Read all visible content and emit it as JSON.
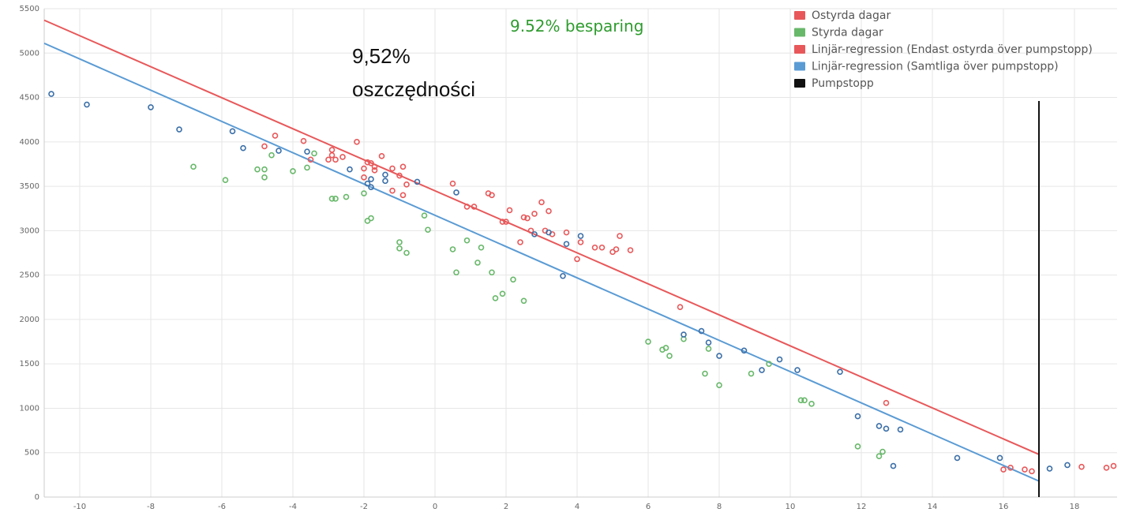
{
  "chart_data": {
    "type": "scatter",
    "xlim": [
      -11,
      19.2
    ],
    "ylim": [
      0,
      5500
    ],
    "x_ticks": [
      -10,
      -8,
      -6,
      -4,
      -2,
      0,
      2,
      4,
      6,
      8,
      10,
      12,
      14,
      16,
      18
    ],
    "y_ticks": [
      0,
      500,
      1000,
      1500,
      2000,
      2500,
      3000,
      3500,
      4000,
      4500,
      5000,
      5500
    ],
    "grid": true,
    "legend_position": "top-right",
    "legend": [
      {
        "label": "Ostyrda dagar",
        "color": "#e8585a"
      },
      {
        "label": "Styrda dagar",
        "color": "#68b86a"
      },
      {
        "label": "Linjär-regression (Endast ostyrda över pumpstopp)",
        "color": "#e8585a"
      },
      {
        "label": "Linjär-regression (Samtliga över pumpstopp)",
        "color": "#5a9bd4"
      },
      {
        "label": "Pumpstopp",
        "color": "#111111"
      }
    ],
    "annotations": {
      "savings_sv": "9.52% besparing",
      "savings_pl_line1": "9,52%",
      "savings_pl_line2": "oszczędności"
    },
    "series": [
      {
        "color": "#e8585a",
        "points": [
          [
            -4.8,
            3950
          ],
          [
            -4.5,
            4070
          ],
          [
            -3.7,
            4010
          ],
          [
            -3.5,
            3800
          ],
          [
            -3.0,
            3800
          ],
          [
            -2.9,
            3850
          ],
          [
            -2.9,
            3910
          ],
          [
            -2.8,
            3800
          ],
          [
            -2.6,
            3830
          ],
          [
            -2.2,
            4000
          ],
          [
            -2.0,
            3600
          ],
          [
            -2.0,
            3700
          ],
          [
            -1.9,
            3770
          ],
          [
            -1.8,
            3760
          ],
          [
            -1.7,
            3720
          ],
          [
            -1.7,
            3680
          ],
          [
            -1.5,
            3840
          ],
          [
            -1.2,
            3700
          ],
          [
            -1.2,
            3450
          ],
          [
            -1.0,
            3620
          ],
          [
            -0.9,
            3720
          ],
          [
            -0.9,
            3400
          ],
          [
            -0.8,
            3520
          ],
          [
            0.5,
            3530
          ],
          [
            0.9,
            3270
          ],
          [
            1.1,
            3270
          ],
          [
            1.5,
            3420
          ],
          [
            1.6,
            3400
          ],
          [
            1.9,
            3100
          ],
          [
            2.0,
            3100
          ],
          [
            2.1,
            3230
          ],
          [
            2.4,
            2870
          ],
          [
            2.5,
            3150
          ],
          [
            2.6,
            3140
          ],
          [
            2.7,
            3000
          ],
          [
            2.8,
            3190
          ],
          [
            3.0,
            3320
          ],
          [
            3.1,
            3000
          ],
          [
            3.2,
            3220
          ],
          [
            3.3,
            2960
          ],
          [
            3.7,
            2980
          ],
          [
            4.0,
            2680
          ],
          [
            4.1,
            2870
          ],
          [
            4.5,
            2810
          ],
          [
            4.7,
            2810
          ],
          [
            5.0,
            2760
          ],
          [
            5.1,
            2790
          ],
          [
            5.2,
            2940
          ],
          [
            5.5,
            2780
          ],
          [
            6.9,
            2140
          ],
          [
            12.7,
            1060
          ],
          [
            16.0,
            310
          ],
          [
            16.2,
            330
          ],
          [
            16.6,
            310
          ],
          [
            16.8,
            290
          ],
          [
            18.2,
            340
          ],
          [
            18.9,
            330
          ],
          [
            19.1,
            350
          ]
        ]
      },
      {
        "color": "#68b86a",
        "points": [
          [
            -6.8,
            3720
          ],
          [
            -5.9,
            3570
          ],
          [
            -5.0,
            3690
          ],
          [
            -4.8,
            3600
          ],
          [
            -4.8,
            3690
          ],
          [
            -4.6,
            3850
          ],
          [
            -4.0,
            3670
          ],
          [
            -3.6,
            3710
          ],
          [
            -3.4,
            3870
          ],
          [
            -2.9,
            3360
          ],
          [
            -2.8,
            3360
          ],
          [
            -2.5,
            3380
          ],
          [
            -2.0,
            3420
          ],
          [
            -1.9,
            3110
          ],
          [
            -1.8,
            3140
          ],
          [
            -1.0,
            2870
          ],
          [
            -1.0,
            2800
          ],
          [
            -0.8,
            2750
          ],
          [
            -0.3,
            3170
          ],
          [
            -0.2,
            3010
          ],
          [
            0.5,
            2790
          ],
          [
            0.6,
            2530
          ],
          [
            0.9,
            2890
          ],
          [
            1.2,
            2640
          ],
          [
            1.3,
            2810
          ],
          [
            1.6,
            2530
          ],
          [
            1.7,
            2240
          ],
          [
            1.9,
            2290
          ],
          [
            2.2,
            2450
          ],
          [
            2.5,
            2210
          ],
          [
            6.0,
            1750
          ],
          [
            6.4,
            1660
          ],
          [
            6.5,
            1680
          ],
          [
            6.6,
            1590
          ],
          [
            7.0,
            1780
          ],
          [
            7.6,
            1390
          ],
          [
            7.7,
            1670
          ],
          [
            8.0,
            1260
          ],
          [
            8.9,
            1390
          ],
          [
            9.4,
            1500
          ],
          [
            10.3,
            1090
          ],
          [
            10.4,
            1090
          ],
          [
            10.6,
            1050
          ],
          [
            11.9,
            570
          ],
          [
            12.5,
            460
          ],
          [
            12.6,
            510
          ]
        ]
      },
      {
        "color": "#3b6fa8",
        "points": [
          [
            -10.8,
            4540
          ],
          [
            -9.8,
            4420
          ],
          [
            -8.0,
            4390
          ],
          [
            -7.2,
            4140
          ],
          [
            -5.7,
            4120
          ],
          [
            -5.4,
            3930
          ],
          [
            -4.4,
            3900
          ],
          [
            -3.6,
            3890
          ],
          [
            -2.4,
            3690
          ],
          [
            -1.9,
            3530
          ],
          [
            -1.8,
            3490
          ],
          [
            -1.8,
            3580
          ],
          [
            -1.4,
            3560
          ],
          [
            -1.4,
            3630
          ],
          [
            -0.5,
            3550
          ],
          [
            0.6,
            3430
          ],
          [
            2.8,
            2960
          ],
          [
            3.2,
            2980
          ],
          [
            3.6,
            2490
          ],
          [
            3.7,
            2850
          ],
          [
            4.1,
            2940
          ],
          [
            7.0,
            1830
          ],
          [
            7.5,
            1870
          ],
          [
            7.7,
            1740
          ],
          [
            8.0,
            1590
          ],
          [
            8.7,
            1650
          ],
          [
            9.2,
            1430
          ],
          [
            9.7,
            1550
          ],
          [
            10.2,
            1430
          ],
          [
            11.4,
            1410
          ],
          [
            11.9,
            910
          ],
          [
            12.5,
            800
          ],
          [
            12.7,
            770
          ],
          [
            12.9,
            350
          ],
          [
            13.1,
            760
          ],
          [
            14.7,
            440
          ],
          [
            15.9,
            440
          ],
          [
            17.3,
            320
          ],
          [
            17.8,
            360
          ]
        ]
      }
    ],
    "regression_lines": [
      {
        "color": "#e8585a",
        "x": [
          -11,
          17.0
        ],
        "y": [
          5370,
          480
        ]
      },
      {
        "color": "#5a9bd4",
        "x": [
          -11,
          17.0
        ],
        "y": [
          5110,
          180
        ]
      }
    ],
    "vertical_line": {
      "x": 17.0,
      "y_top": 4460,
      "color": "#111111"
    }
  }
}
